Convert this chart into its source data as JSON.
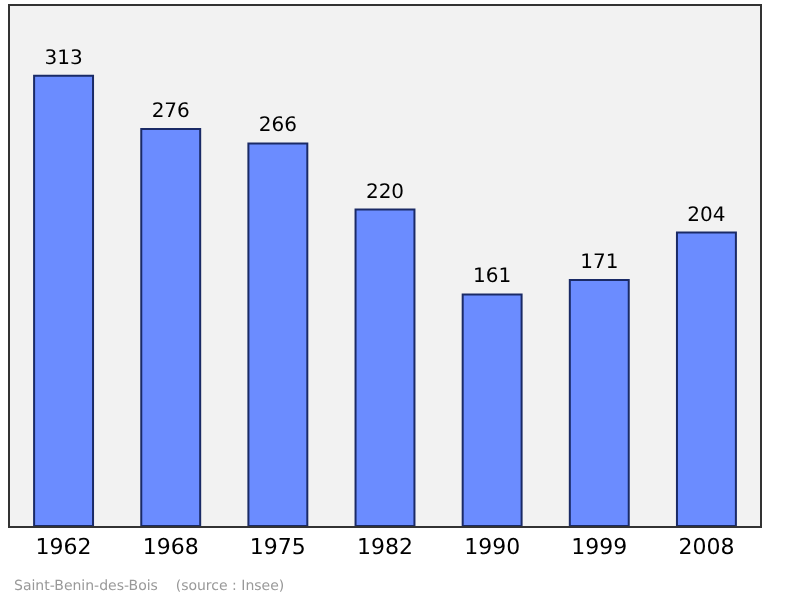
{
  "chart_data": {
    "type": "bar",
    "categories": [
      "1962",
      "1968",
      "1975",
      "1982",
      "1990",
      "1999",
      "2008"
    ],
    "values": [
      313,
      276,
      266,
      220,
      161,
      171,
      204
    ],
    "color": "#6b8cff",
    "data_labels": true,
    "grid": false,
    "legend": false,
    "annotations": [
      "Saint-Benin-des-Bois    (source : Insee)"
    ]
  }
}
